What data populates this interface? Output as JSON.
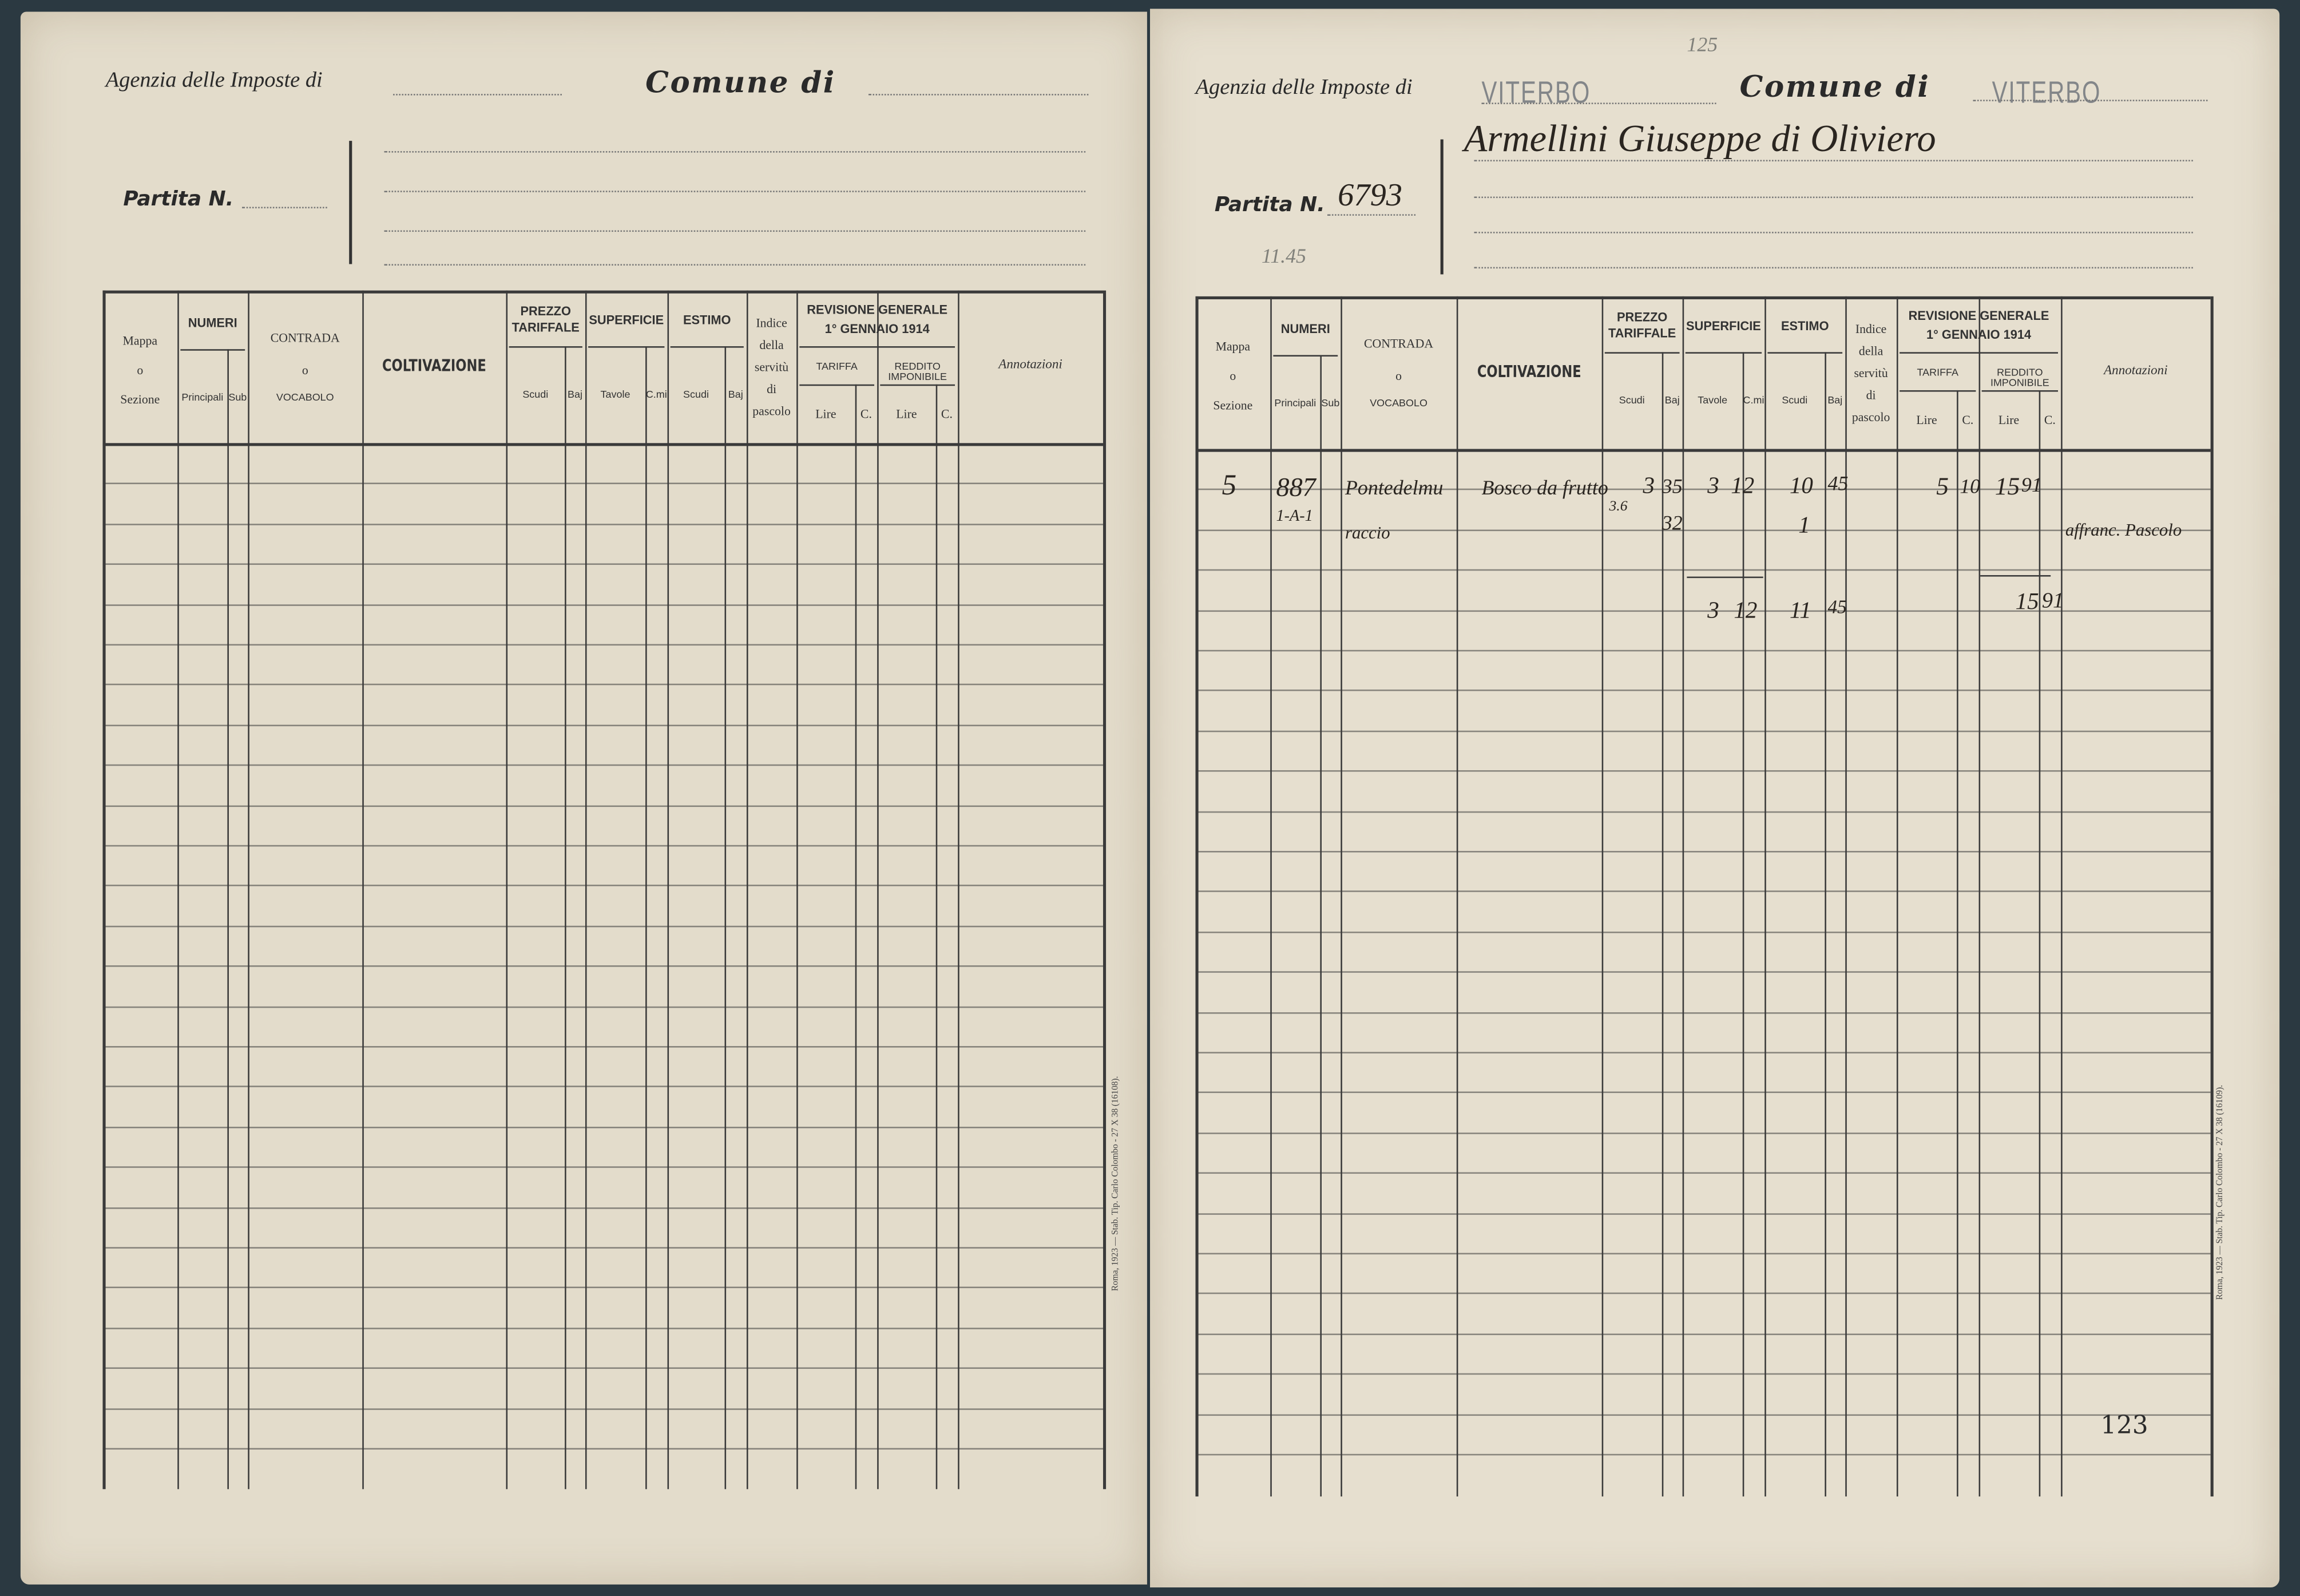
{
  "left_page": {
    "agency_label": "Agenzia delle Imposte di",
    "comune_label": "Comune di",
    "partita_label": "Partita N.",
    "printer_note": "Roma, 1923 — Stab. Tip. Carlo Colombo - 27 X 38 (16108)."
  },
  "right_page": {
    "agency_label": "Agenzia delle Imposte di",
    "agency_stamp": "VITERBO",
    "comune_label": "Comune di",
    "comune_stamp": "VITERBO",
    "pencil_number": "125",
    "partita_label": "Partita N.",
    "partita_value": "6793",
    "pencil_note": "11.45",
    "owner_name": "Armellini Giuseppe di Oliviero",
    "page_number": "123",
    "printer_note": "Roma, 1923 — Stab. Tip. Carlo Colombo - 27 X 38 (16109).",
    "entries": {
      "mappa": "5",
      "numero": "887",
      "sub": "1-A-1",
      "contrada_1": "Pontedelmu",
      "contrada_2": "raccio",
      "coltivazione": "Bosco da frutto",
      "prezzo_note": "3.6",
      "prezzo_scudi": "3",
      "prezzo_baj_1": "35",
      "prezzo_baj_2": "32",
      "sup_tavole": "3",
      "sup_cmi": "12",
      "estimo_scudi_1": "10",
      "estimo_baj_1": "45",
      "estimo_scudi_2": "1",
      "tariffa_lire": "5",
      "tariffa_c": "10",
      "reddito_lire": "15",
      "reddito_c": "91",
      "annotazioni": "affranc. Pascolo",
      "total_tavole": "3",
      "total_cmi": "12",
      "total_estimo_scudi": "11",
      "total_estimo_baj": "45",
      "total_reddito_lire": "15",
      "total_reddito_c": "91"
    }
  },
  "table_header": {
    "mappa": [
      "Mappa",
      "o",
      "Sezione"
    ],
    "numeri": "NUMERI",
    "principali": "Principali",
    "sub": "Sub",
    "contrada": [
      "CONTRADA",
      "o",
      "VOCABOLO"
    ],
    "coltivazione": "COLTIVAZIONE",
    "prezzo": [
      "PREZZO",
      "TARIFFALE"
    ],
    "superficie": "SUPERFICIE",
    "estimo": "ESTIMO",
    "scudi": "Scudi",
    "baj": "Baj",
    "tavole": "Tavole",
    "cmi": "C.mi",
    "indice": [
      "Indice",
      "della",
      "servitù",
      "di",
      "pascolo"
    ],
    "revisione": [
      "REVISIONE GENERALE",
      "1° GENNAIO 1914"
    ],
    "tariffa": "TARIFFA",
    "reddito": "REDDITO IMPONIBILE",
    "lire": "Lire",
    "cent": "C.",
    "annotazioni": "Annotazioni"
  },
  "colors": {
    "paper": "#e3dccb",
    "ink": "#2a2520",
    "stamp": "#6b7078",
    "background": "#2b3941"
  }
}
